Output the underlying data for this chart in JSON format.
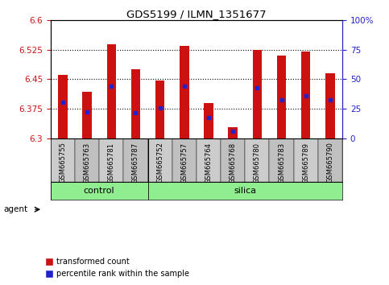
{
  "title": "GDS5199 / ILMN_1351677",
  "samples": [
    "GSM665755",
    "GSM665763",
    "GSM665781",
    "GSM665787",
    "GSM665752",
    "GSM665757",
    "GSM665764",
    "GSM665768",
    "GSM665780",
    "GSM665783",
    "GSM665789",
    "GSM665790"
  ],
  "groups": [
    "control",
    "control",
    "control",
    "control",
    "silica",
    "silica",
    "silica",
    "silica",
    "silica",
    "silica",
    "silica",
    "silica"
  ],
  "bar_values": [
    6.462,
    6.418,
    6.538,
    6.475,
    6.447,
    6.535,
    6.39,
    6.328,
    6.525,
    6.51,
    6.52,
    6.465
  ],
  "percentile_values": [
    6.392,
    6.368,
    6.432,
    6.365,
    6.378,
    6.432,
    6.353,
    6.318,
    6.428,
    6.398,
    6.408,
    6.398
  ],
  "ymin": 6.3,
  "ymax": 6.6,
  "yticks": [
    6.3,
    6.375,
    6.45,
    6.525,
    6.6
  ],
  "ytick_labels": [
    "6.3",
    "6.375",
    "6.45",
    "6.525",
    "6.6"
  ],
  "y2ticks": [
    0,
    25,
    50,
    75,
    100
  ],
  "y2tick_labels": [
    "0",
    "25",
    "50",
    "75",
    "100%"
  ],
  "bar_color": "#cc1111",
  "percentile_color": "#2222cc",
  "bg_color": "#ffffff",
  "plot_bg": "#ffffff",
  "control_color": "#90ee90",
  "silica_color": "#90ee90",
  "agent_label": "agent",
  "legend_items": [
    "transformed count",
    "percentile rank within the sample"
  ],
  "n_control": 4,
  "n_silica": 8
}
